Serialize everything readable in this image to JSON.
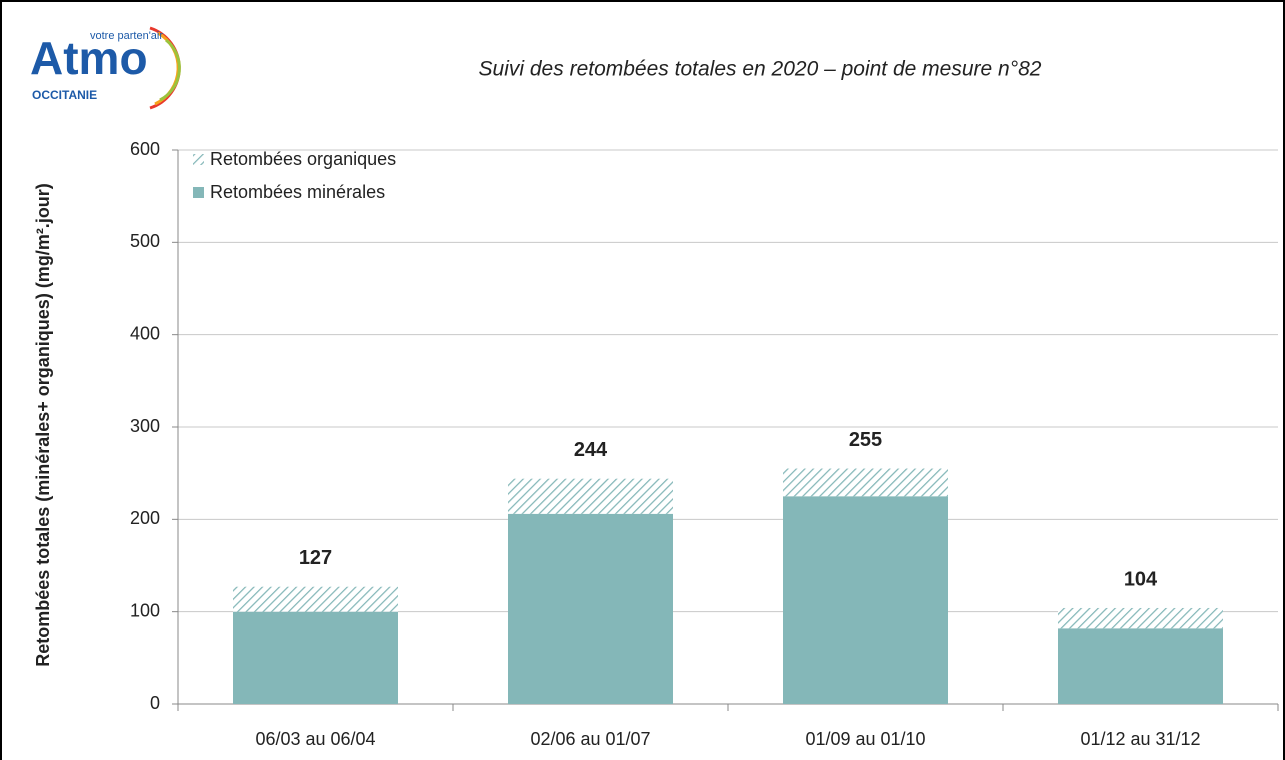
{
  "logo": {
    "name": "Atmo",
    "tagline": "votre parten'air",
    "region": "OCCITANIE"
  },
  "chart_data": {
    "type": "bar",
    "stacked": true,
    "title": "Suivi des retombées totales en 2020 – point de mesure n°82",
    "y_label": "Retombées totales (minérales+ organiques) (mg/m².jour)",
    "categories": [
      "06/03 au 06/04",
      "02/06 au 01/07",
      "01/09 au 01/10",
      "01/12 au 31/12"
    ],
    "series": [
      {
        "name": "Retombées minérales",
        "color": "#84b7b8",
        "values": [
          100,
          206,
          225,
          82
        ]
      },
      {
        "name": "Retombées organiques",
        "color": "#84b7b8",
        "pattern": "hatch",
        "values": [
          27,
          38,
          30,
          22
        ]
      }
    ],
    "totals": [
      127,
      244,
      255,
      104
    ],
    "ylim": [
      0,
      600
    ],
    "yticks": [
      0,
      100,
      200,
      300,
      400,
      500,
      600
    ],
    "grid": true,
    "legend": "top-left"
  }
}
